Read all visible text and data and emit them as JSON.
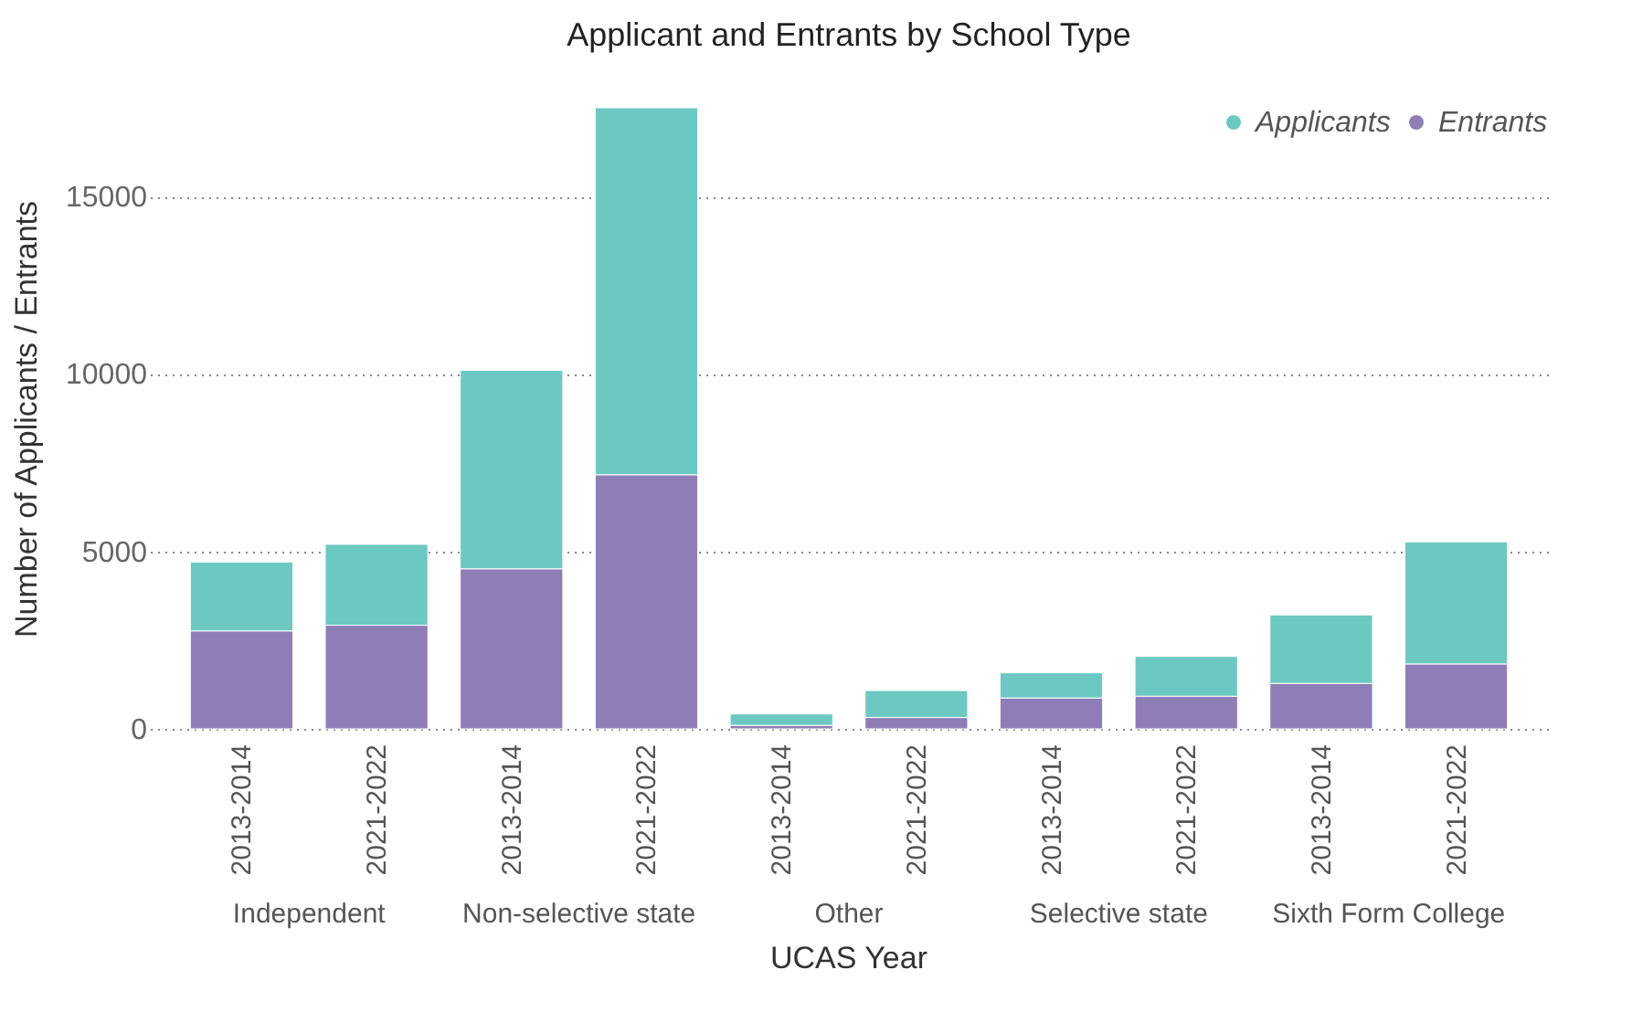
{
  "chart_data": {
    "type": "bar",
    "title": "Applicant and Entrants by School Type",
    "xlabel": "UCAS Year",
    "ylabel": "Number of Applicants / Entrants",
    "categories": [
      "2013-2014",
      "2021-2022",
      "2013-2014",
      "2021-2022",
      "2013-2014",
      "2021-2022",
      "2013-2014",
      "2021-2022",
      "2013-2014",
      "2021-2022"
    ],
    "annotations": [
      "Independent",
      "Non-selective state",
      "Other",
      "Selective state",
      "Sixth Form College"
    ],
    "stacked": true,
    "series": [
      {
        "name": "Entrants",
        "color": "#8f7db8",
        "values": [
          2760,
          2920,
          4510,
          7160,
          100,
          320,
          870,
          920,
          1280,
          1830
        ]
      },
      {
        "name": "Applicants",
        "color": "#6cc9c2",
        "values": [
          1940,
          2280,
          5590,
          10340,
          320,
          760,
          710,
          1120,
          1930,
          3440
        ]
      }
    ],
    "ylim": [
      0,
      17500
    ],
    "yticks": [
      0,
      {
        "value": 5000,
        "label": "5000"
      },
      {
        "value": 10000,
        "label": "10000"
      },
      {
        "value": 15000,
        "label": "15000"
      }
    ],
    "grid": "y",
    "legend": "top right"
  }
}
